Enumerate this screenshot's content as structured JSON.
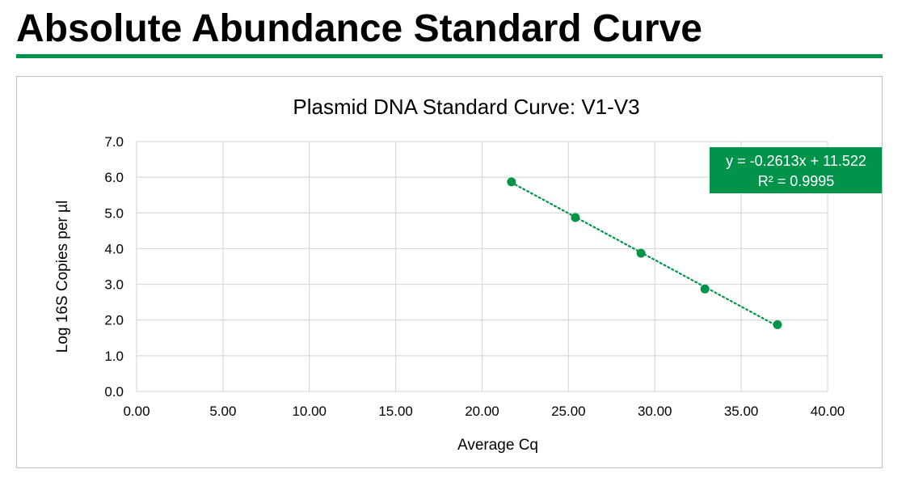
{
  "header": {
    "title": "Absolute Abundance Standard Curve"
  },
  "colors": {
    "accent": "#00944a",
    "grid": "#d9d9d9",
    "frame_border": "#bfbfbf",
    "text": "#000000",
    "equation_text": "#ffffff"
  },
  "chart_data": {
    "type": "scatter",
    "title": "Plasmid DNA Standard Curve: V1-V3",
    "xlabel": "Average Cq",
    "ylabel": "Log 16S Copies per µl",
    "xlim": [
      0,
      40
    ],
    "ylim": [
      0,
      7
    ],
    "x_ticks": [
      "0.00",
      "5.00",
      "10.00",
      "15.00",
      "20.00",
      "25.00",
      "30.00",
      "35.00",
      "40.00"
    ],
    "y_ticks": [
      "0.0",
      "1.0",
      "2.0",
      "3.0",
      "4.0",
      "5.0",
      "6.0",
      "7.0"
    ],
    "grid": true,
    "legend": "none",
    "series": [
      {
        "x": [
          21.7,
          25.4,
          29.2,
          32.9,
          37.1
        ],
        "y": [
          5.87,
          4.87,
          3.87,
          2.87,
          1.87
        ]
      }
    ],
    "trendline": {
      "type": "linear",
      "slope": -0.2613,
      "intercept": 11.522,
      "x_range": [
        21.7,
        37.1
      ],
      "style": "dotted"
    },
    "equation_label": {
      "line1": "y = -0.2613x + 11.522",
      "line2": "R² = 0.9995",
      "placement": "top-right"
    }
  }
}
